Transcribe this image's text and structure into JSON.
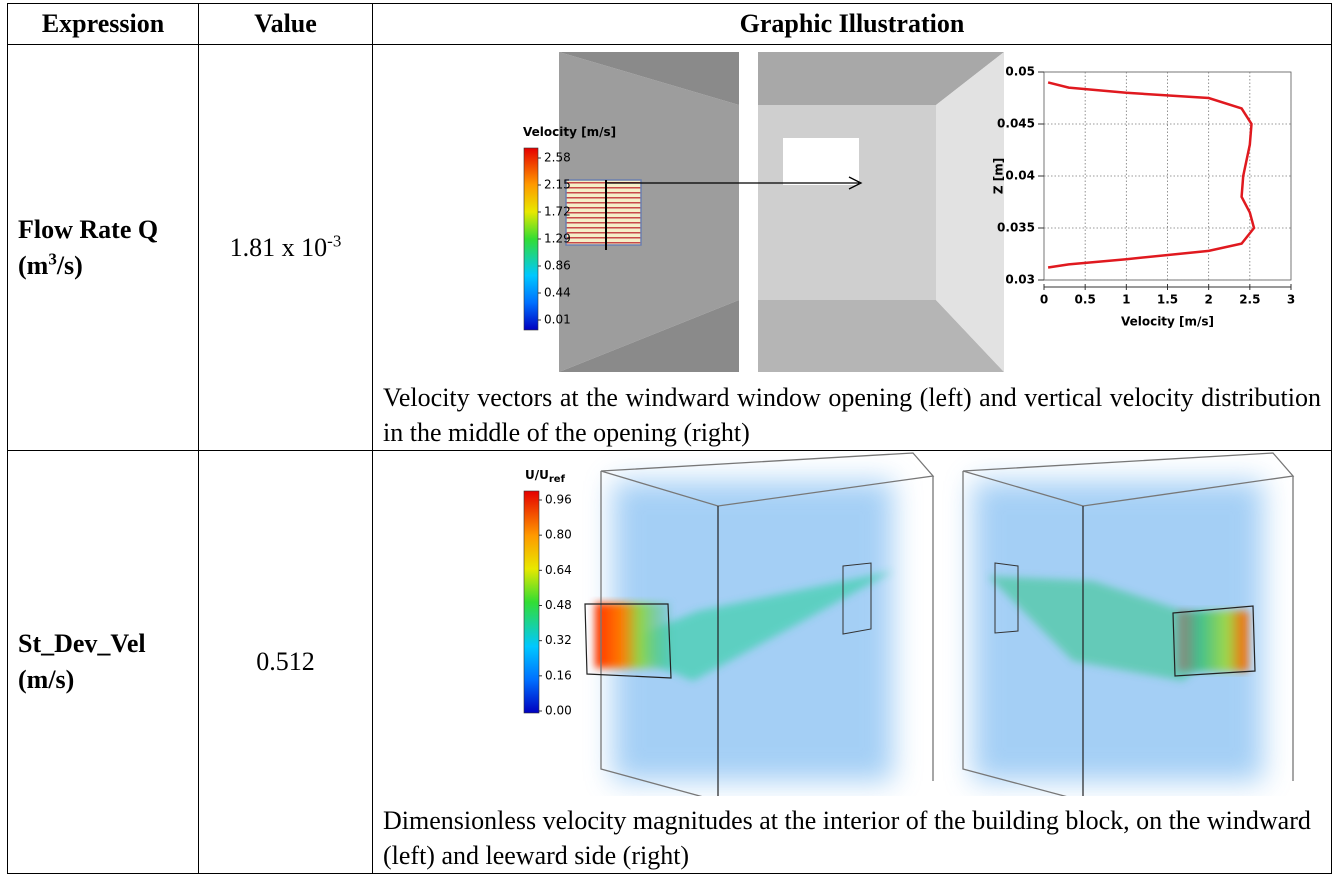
{
  "header": [
    "Expression",
    "Value",
    "Graphic Illustration"
  ],
  "rows": [
    {
      "expression": {
        "name": "Flow Rate Q",
        "unit_open": "(m",
        "unit_sup": "3",
        "unit_close": "/s)"
      },
      "value": {
        "base": "1.81 x 10",
        "exponent": "-3"
      },
      "colorbar": {
        "title": "Velocity [m/s]",
        "labels": [
          "2.58",
          "2.15",
          "1.72",
          "1.29",
          "0.86",
          "0.44",
          "0.01"
        ]
      },
      "profile": {
        "xlabel": "Velocity [m/s]",
        "ylabel": "Z [m]",
        "xlim": [
          0,
          3
        ],
        "ylim": [
          0.03,
          0.05
        ],
        "xticks": [
          0,
          0.5,
          1,
          1.5,
          2,
          2.5,
          3
        ],
        "yticks": [
          0.03,
          0.035,
          0.04,
          0.045,
          0.05
        ],
        "color": "#e0191f",
        "velocity": [
          0.05,
          0.3,
          1.0,
          2.0,
          2.4,
          2.55,
          2.5,
          2.4,
          2.42,
          2.5,
          2.52,
          2.4,
          2.0,
          1.0,
          0.3,
          0.05
        ],
        "z": [
          0.0312,
          0.0315,
          0.032,
          0.0328,
          0.0335,
          0.035,
          0.0365,
          0.038,
          0.04,
          0.043,
          0.045,
          0.0465,
          0.0475,
          0.048,
          0.0485,
          0.049
        ]
      },
      "caption": "Velocity vectors at the windward window opening (left) and vertical velocity distribution in the middle of the opening (right)"
    },
    {
      "expression": {
        "name": "St_Dev_Vel",
        "unit": "(m/s)"
      },
      "value": "0.512",
      "colorbar": {
        "title": "U/U",
        "title_sub": "ref",
        "labels": [
          "0.96",
          "0.80",
          "0.64",
          "0.48",
          "0.32",
          "0.16",
          "0.00"
        ]
      },
      "caption": "Dimensionless velocity magnitudes at the interior of the building block, on the windward (left) and leeward side (right)"
    }
  ]
}
